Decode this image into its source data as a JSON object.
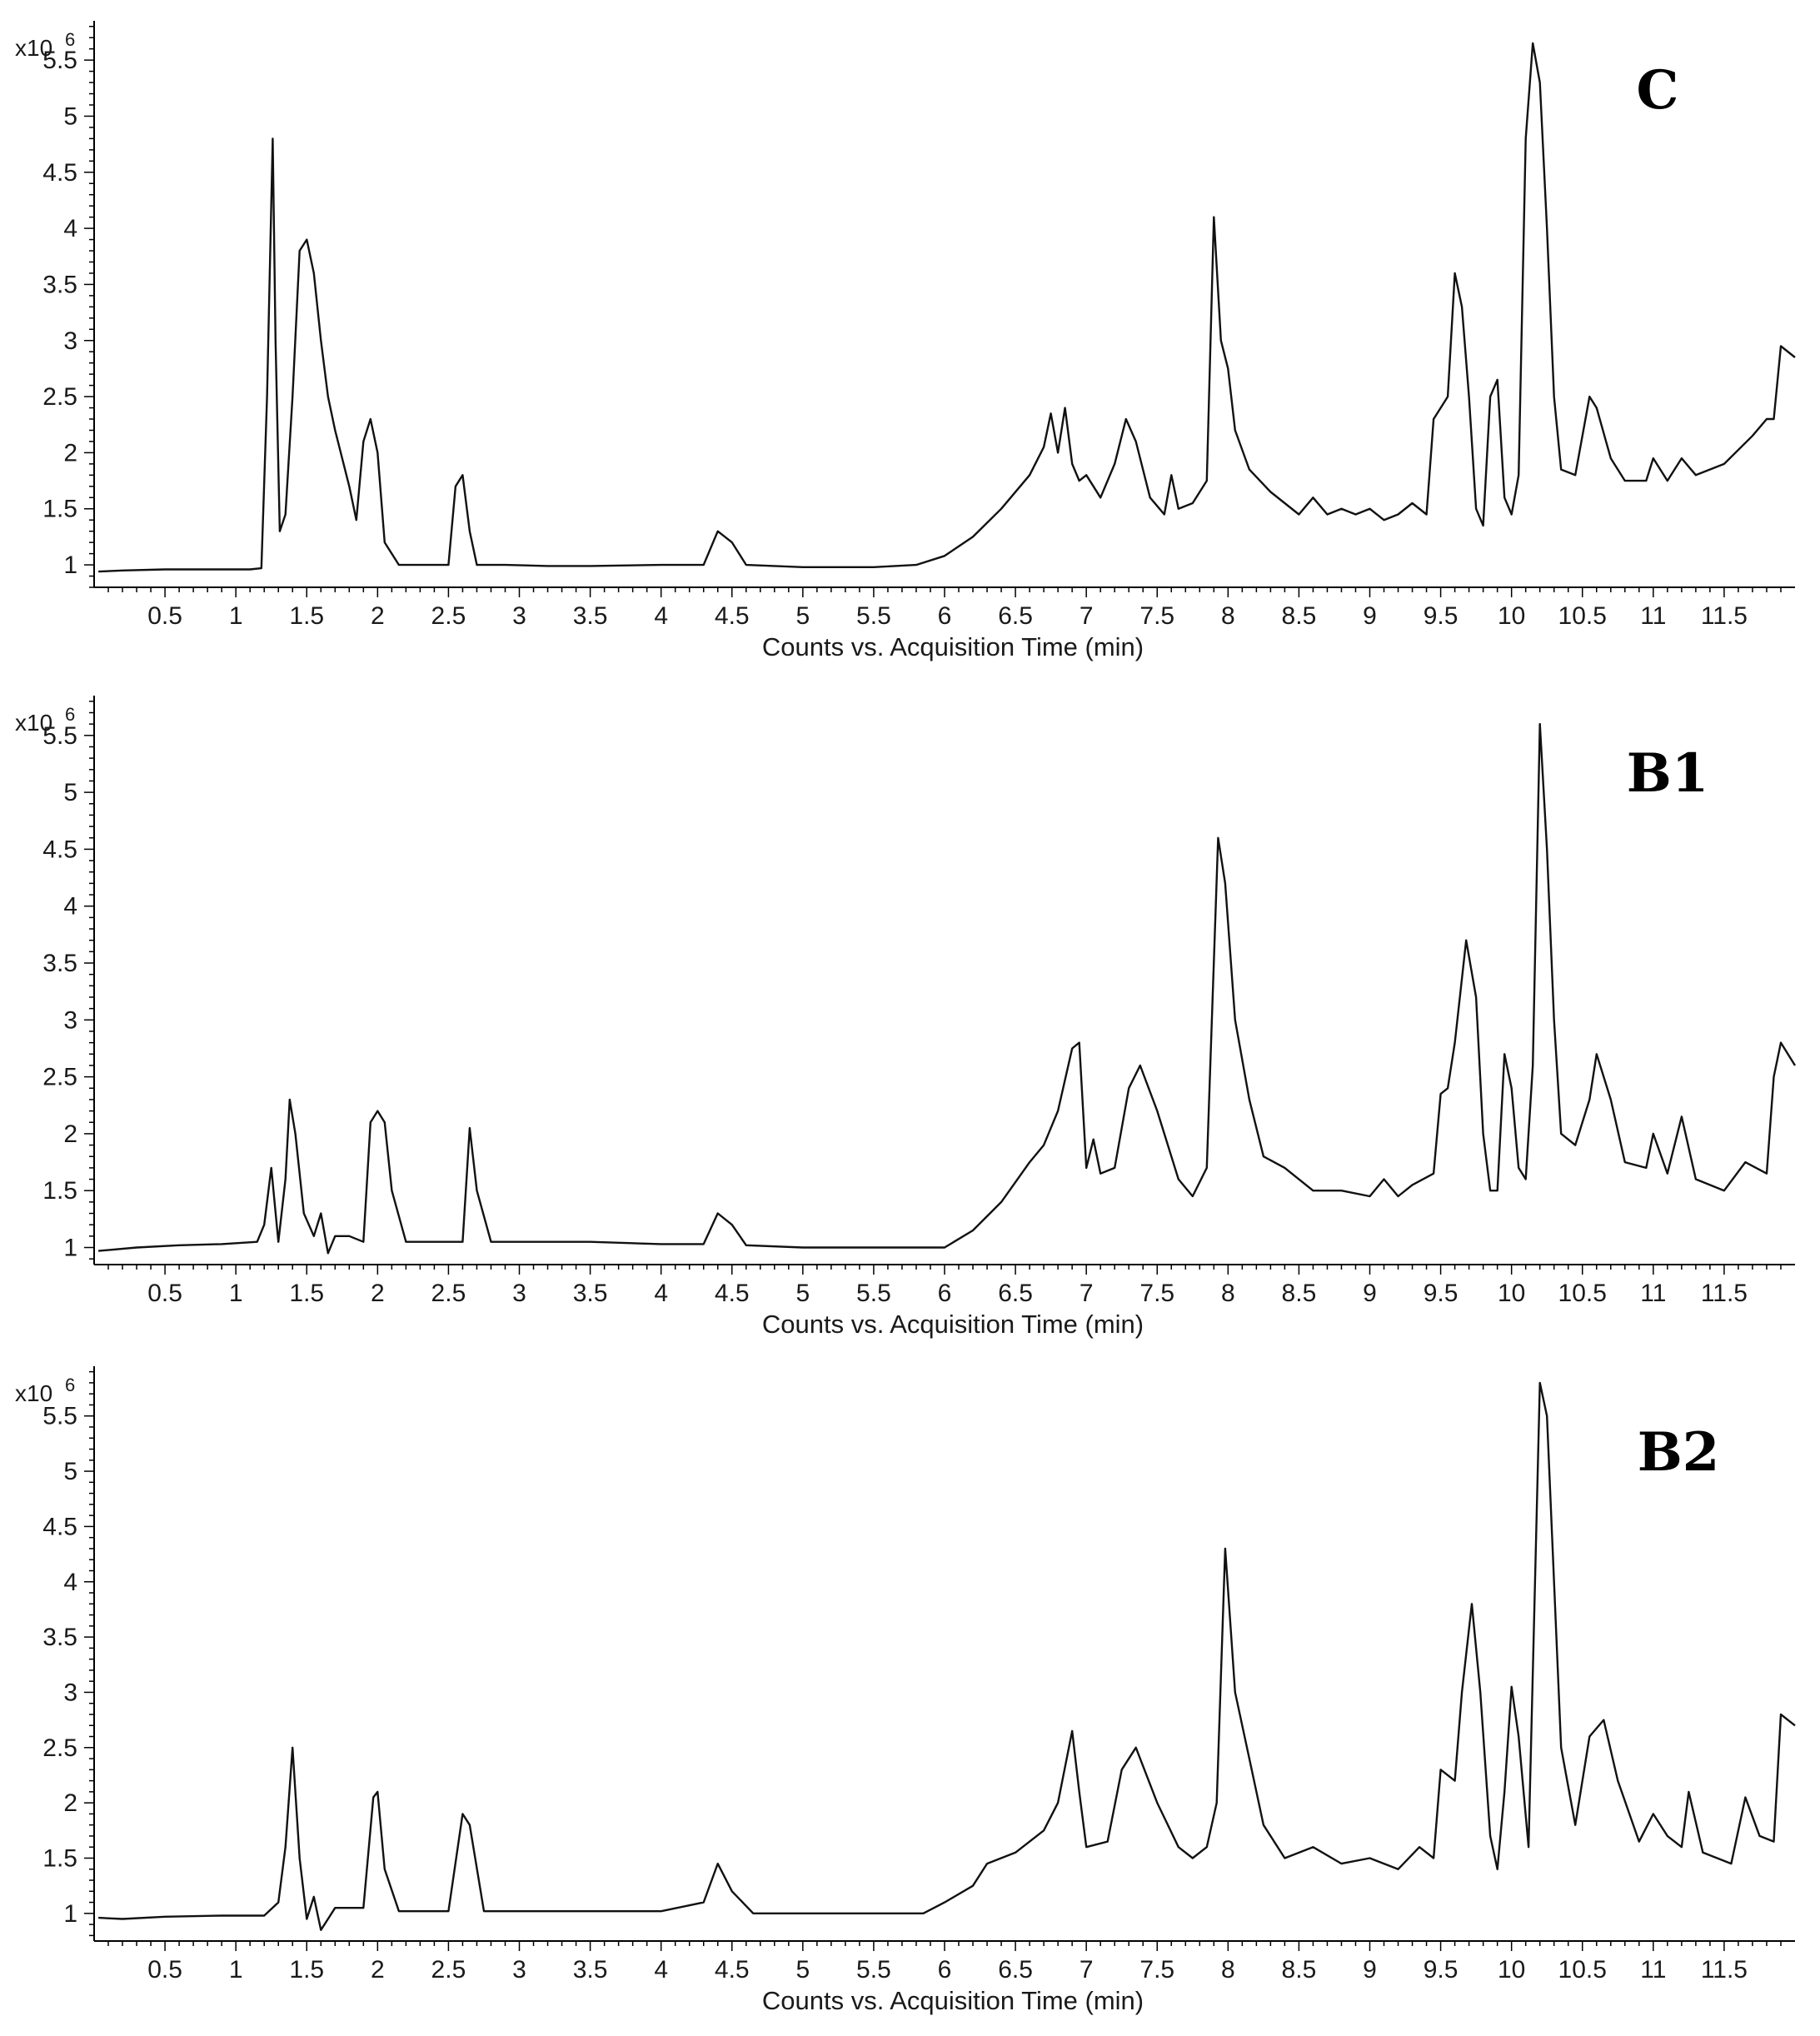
{
  "chart_data": [
    {
      "type": "line",
      "panel_label": "C",
      "xlabel": "Counts vs. Acquisition Time (min)",
      "y_scale_label": "x10",
      "y_scale_exponent": "6",
      "xlim": [
        0,
        12
      ],
      "ylim": [
        0.8,
        5.85
      ],
      "x_ticks": [
        0.5,
        1,
        1.5,
        2,
        2.5,
        3,
        3.5,
        4,
        4.5,
        5,
        5.5,
        6,
        6.5,
        7,
        7.5,
        8,
        8.5,
        9,
        9.5,
        10,
        10.5,
        11,
        11.5
      ],
      "x_tick_labels": [
        "0.5",
        "1",
        "1.5",
        "2",
        "2.5",
        "3",
        "3.5",
        "4",
        "4.5",
        "5",
        "5.5",
        "6",
        "6.5",
        "7",
        "7.5",
        "8",
        "8.5",
        "9",
        "9.5",
        "10",
        "10.5",
        "11",
        "11.5"
      ],
      "y_ticks": [
        1,
        1.5,
        2,
        2.5,
        3,
        3.5,
        4,
        4.5,
        5,
        5.5
      ],
      "y_tick_labels": [
        "1",
        "1.5",
        "2",
        "2.5",
        "3",
        "3.5",
        "4",
        "4.5",
        "5",
        "5.5"
      ],
      "series": [
        {
          "x": [
            0.03,
            0.2,
            0.5,
            0.8,
            1.1,
            1.18,
            1.22,
            1.26,
            1.28,
            1.31,
            1.35,
            1.4,
            1.45,
            1.5,
            1.55,
            1.6,
            1.65,
            1.7,
            1.8,
            1.85,
            1.9,
            1.95,
            2.0,
            2.05,
            2.15,
            2.3,
            2.5,
            2.55,
            2.6,
            2.65,
            2.7,
            2.9,
            3.2,
            3.5,
            4.0,
            4.3,
            4.4,
            4.5,
            4.6,
            5.0,
            5.5,
            5.8,
            6.0,
            6.2,
            6.4,
            6.6,
            6.7,
            6.75,
            6.8,
            6.85,
            6.9,
            6.95,
            7.0,
            7.1,
            7.2,
            7.28,
            7.35,
            7.45,
            7.55,
            7.6,
            7.65,
            7.75,
            7.85,
            7.9,
            7.95,
            8.0,
            8.05,
            8.15,
            8.3,
            8.5,
            8.6,
            8.7,
            8.8,
            8.9,
            9.0,
            9.1,
            9.2,
            9.3,
            9.4,
            9.45,
            9.5,
            9.55,
            9.6,
            9.65,
            9.7,
            9.75,
            9.8,
            9.85,
            9.9,
            9.95,
            10.0,
            10.05,
            10.1,
            10.15,
            10.2,
            10.25,
            10.3,
            10.35,
            10.45,
            10.55,
            10.6,
            10.7,
            10.8,
            10.95,
            11.0,
            11.1,
            11.2,
            11.3,
            11.5,
            11.7,
            11.8,
            11.85,
            11.9,
            12.0
          ],
          "y": [
            0.94,
            0.95,
            0.96,
            0.96,
            0.96,
            0.97,
            2.5,
            4.8,
            3.0,
            1.3,
            1.45,
            2.5,
            3.8,
            3.9,
            3.6,
            3.0,
            2.5,
            2.2,
            1.7,
            1.4,
            2.1,
            2.3,
            2.0,
            1.2,
            1.0,
            1.0,
            1.0,
            1.7,
            1.8,
            1.3,
            1.0,
            1.0,
            0.99,
            0.99,
            1.0,
            1.0,
            1.3,
            1.2,
            1.0,
            0.98,
            0.98,
            1.0,
            1.08,
            1.25,
            1.5,
            1.8,
            2.05,
            2.35,
            2.0,
            2.4,
            1.9,
            1.75,
            1.8,
            1.6,
            1.9,
            2.3,
            2.1,
            1.6,
            1.45,
            1.8,
            1.5,
            1.55,
            1.75,
            4.1,
            3.0,
            2.75,
            2.2,
            1.85,
            1.65,
            1.45,
            1.6,
            1.45,
            1.5,
            1.45,
            1.5,
            1.4,
            1.45,
            1.55,
            1.45,
            2.3,
            2.4,
            2.5,
            3.6,
            3.3,
            2.5,
            1.5,
            1.35,
            2.5,
            2.65,
            1.6,
            1.45,
            1.8,
            4.8,
            5.65,
            5.3,
            4.0,
            2.5,
            1.85,
            1.8,
            2.5,
            2.4,
            1.95,
            1.75,
            1.75,
            1.95,
            1.75,
            1.95,
            1.8,
            1.9,
            2.15,
            2.3,
            2.3,
            2.95,
            2.85
          ]
        }
      ]
    },
    {
      "type": "line",
      "panel_label": "B1",
      "xlabel": "Counts vs. Acquisition Time (min)",
      "y_scale_label": "x10",
      "y_scale_exponent": "6",
      "xlim": [
        0,
        12
      ],
      "ylim": [
        0.85,
        5.85
      ],
      "x_ticks": [
        0.5,
        1,
        1.5,
        2,
        2.5,
        3,
        3.5,
        4,
        4.5,
        5,
        5.5,
        6,
        6.5,
        7,
        7.5,
        8,
        8.5,
        9,
        9.5,
        10,
        10.5,
        11,
        11.5
      ],
      "x_tick_labels": [
        "0.5",
        "1",
        "1.5",
        "2",
        "2.5",
        "3",
        "3.5",
        "4",
        "4.5",
        "5",
        "5.5",
        "6",
        "6.5",
        "7",
        "7.5",
        "8",
        "8.5",
        "9",
        "9.5",
        "10",
        "10.5",
        "11",
        "11.5"
      ],
      "y_ticks": [
        1,
        1.5,
        2,
        2.5,
        3,
        3.5,
        4,
        4.5,
        5,
        5.5
      ],
      "y_tick_labels": [
        "1",
        "1.5",
        "2",
        "2.5",
        "3",
        "3.5",
        "4",
        "4.5",
        "5",
        "5.5"
      ],
      "series": [
        {
          "x": [
            0.03,
            0.3,
            0.6,
            0.9,
            1.15,
            1.2,
            1.25,
            1.3,
            1.35,
            1.38,
            1.42,
            1.48,
            1.55,
            1.6,
            1.65,
            1.7,
            1.8,
            1.9,
            1.95,
            2.0,
            2.05,
            2.1,
            2.2,
            2.4,
            2.6,
            2.65,
            2.7,
            2.8,
            3.0,
            3.5,
            4.0,
            4.3,
            4.4,
            4.5,
            4.6,
            5.0,
            5.5,
            6.0,
            6.2,
            6.4,
            6.6,
            6.7,
            6.8,
            6.9,
            6.95,
            7.0,
            7.05,
            7.1,
            7.2,
            7.3,
            7.38,
            7.5,
            7.65,
            7.75,
            7.85,
            7.93,
            7.98,
            8.05,
            8.15,
            8.25,
            8.4,
            8.6,
            8.8,
            9.0,
            9.1,
            9.2,
            9.3,
            9.45,
            9.5,
            9.55,
            9.6,
            9.68,
            9.75,
            9.8,
            9.85,
            9.9,
            9.95,
            10.0,
            10.05,
            10.1,
            10.15,
            10.2,
            10.25,
            10.3,
            10.35,
            10.45,
            10.55,
            10.6,
            10.7,
            10.8,
            10.95,
            11.0,
            11.1,
            11.2,
            11.3,
            11.5,
            11.65,
            11.8,
            11.85,
            11.9,
            12.0
          ],
          "y": [
            0.97,
            1.0,
            1.02,
            1.03,
            1.05,
            1.2,
            1.7,
            1.05,
            1.6,
            2.3,
            2.0,
            1.3,
            1.1,
            1.3,
            0.95,
            1.1,
            1.1,
            1.05,
            2.1,
            2.2,
            2.1,
            1.5,
            1.05,
            1.05,
            1.05,
            2.05,
            1.5,
            1.05,
            1.05,
            1.05,
            1.03,
            1.03,
            1.3,
            1.2,
            1.02,
            1.0,
            1.0,
            1.0,
            1.15,
            1.4,
            1.75,
            1.9,
            2.2,
            2.75,
            2.8,
            1.7,
            1.95,
            1.65,
            1.7,
            2.4,
            2.6,
            2.2,
            1.6,
            1.45,
            1.7,
            4.6,
            4.2,
            3.0,
            2.3,
            1.8,
            1.7,
            1.5,
            1.5,
            1.45,
            1.6,
            1.45,
            1.55,
            1.65,
            2.35,
            2.4,
            2.8,
            3.7,
            3.2,
            2.0,
            1.5,
            1.5,
            2.7,
            2.4,
            1.7,
            1.6,
            2.6,
            5.6,
            4.5,
            3.0,
            2.0,
            1.9,
            2.3,
            2.7,
            2.3,
            1.75,
            1.7,
            2.0,
            1.65,
            2.15,
            1.6,
            1.5,
            1.75,
            1.65,
            2.5,
            2.8,
            2.6
          ]
        }
      ]
    },
    {
      "type": "line",
      "panel_label": "B2",
      "xlabel": "Counts vs. Acquisition Time (min)",
      "y_scale_label": "x10",
      "y_scale_exponent": "6",
      "xlim": [
        0,
        12
      ],
      "ylim": [
        0.75,
        5.95
      ],
      "x_ticks": [
        0.5,
        1,
        1.5,
        2,
        2.5,
        3,
        3.5,
        4,
        4.5,
        5,
        5.5,
        6,
        6.5,
        7,
        7.5,
        8,
        8.5,
        9,
        9.5,
        10,
        10.5,
        11,
        11.5
      ],
      "x_tick_labels": [
        "0.5",
        "1",
        "1.5",
        "2",
        "2.5",
        "3",
        "3.5",
        "4",
        "4.5",
        "5",
        "5.5",
        "6",
        "6.5",
        "7",
        "7.5",
        "8",
        "8.5",
        "9",
        "9.5",
        "10",
        "10.5",
        "11",
        "11.5"
      ],
      "y_ticks": [
        1,
        1.5,
        2,
        2.5,
        3,
        3.5,
        4,
        4.5,
        5,
        5.5
      ],
      "y_tick_labels": [
        "1",
        "1.5",
        "2",
        "2.5",
        "3",
        "3.5",
        "4",
        "4.5",
        "5",
        "5.5"
      ],
      "series": [
        {
          "x": [
            0.03,
            0.2,
            0.5,
            0.9,
            1.2,
            1.3,
            1.35,
            1.4,
            1.45,
            1.5,
            1.55,
            1.6,
            1.65,
            1.7,
            1.8,
            1.9,
            1.97,
            2.0,
            2.05,
            2.15,
            2.3,
            2.5,
            2.6,
            2.65,
            2.75,
            3.0,
            3.5,
            4.0,
            4.3,
            4.4,
            4.5,
            4.65,
            5.0,
            5.5,
            5.85,
            6.0,
            6.2,
            6.3,
            6.5,
            6.7,
            6.8,
            6.9,
            6.95,
            7.0,
            7.15,
            7.25,
            7.35,
            7.5,
            7.65,
            7.75,
            7.85,
            7.92,
            7.98,
            8.05,
            8.15,
            8.25,
            8.4,
            8.6,
            8.8,
            9.0,
            9.2,
            9.35,
            9.45,
            9.5,
            9.6,
            9.65,
            9.72,
            9.78,
            9.85,
            9.9,
            9.95,
            10.0,
            10.05,
            10.12,
            10.2,
            10.25,
            10.3,
            10.35,
            10.45,
            10.55,
            10.65,
            10.75,
            10.9,
            11.0,
            11.1,
            11.2,
            11.25,
            11.35,
            11.55,
            11.65,
            11.75,
            11.85,
            11.9,
            12.0
          ],
          "y": [
            0.96,
            0.95,
            0.97,
            0.98,
            0.98,
            1.1,
            1.6,
            2.5,
            1.5,
            0.95,
            1.15,
            0.85,
            0.95,
            1.05,
            1.05,
            1.05,
            2.05,
            2.1,
            1.4,
            1.02,
            1.02,
            1.02,
            1.9,
            1.8,
            1.02,
            1.02,
            1.02,
            1.02,
            1.1,
            1.45,
            1.2,
            1.0,
            1.0,
            1.0,
            1.0,
            1.1,
            1.25,
            1.45,
            1.55,
            1.75,
            2.0,
            2.65,
            2.1,
            1.6,
            1.65,
            2.3,
            2.5,
            2.0,
            1.6,
            1.5,
            1.6,
            2.0,
            4.3,
            3.0,
            2.4,
            1.8,
            1.5,
            1.6,
            1.45,
            1.5,
            1.4,
            1.6,
            1.5,
            2.3,
            2.2,
            3.0,
            3.8,
            3.0,
            1.7,
            1.4,
            2.1,
            3.05,
            2.6,
            1.6,
            5.8,
            5.5,
            4.0,
            2.5,
            1.8,
            2.6,
            2.75,
            2.2,
            1.65,
            1.9,
            1.7,
            1.6,
            2.1,
            1.55,
            1.45,
            2.05,
            1.7,
            1.65,
            2.8,
            2.7
          ]
        }
      ]
    }
  ]
}
